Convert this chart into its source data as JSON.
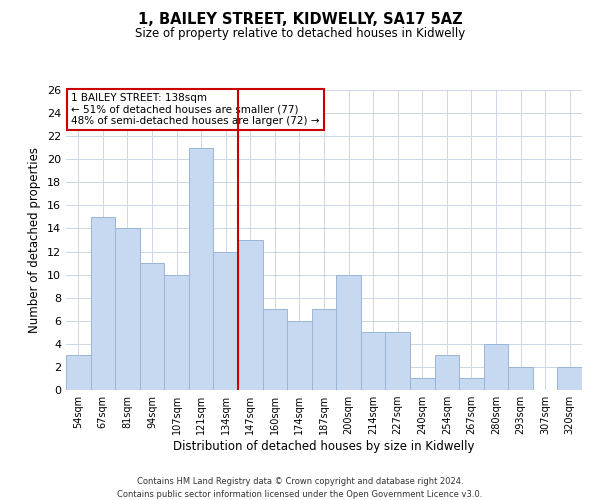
{
  "title": "1, BAILEY STREET, KIDWELLY, SA17 5AZ",
  "subtitle": "Size of property relative to detached houses in Kidwelly",
  "xlabel": "Distribution of detached houses by size in Kidwelly",
  "ylabel": "Number of detached properties",
  "bin_labels": [
    "54sqm",
    "67sqm",
    "81sqm",
    "94sqm",
    "107sqm",
    "121sqm",
    "134sqm",
    "147sqm",
    "160sqm",
    "174sqm",
    "187sqm",
    "200sqm",
    "214sqm",
    "227sqm",
    "240sqm",
    "254sqm",
    "267sqm",
    "280sqm",
    "293sqm",
    "307sqm",
    "320sqm"
  ],
  "bar_heights": [
    3,
    15,
    14,
    11,
    10,
    21,
    12,
    13,
    7,
    6,
    7,
    10,
    5,
    5,
    1,
    3,
    1,
    4,
    2,
    0,
    2
  ],
  "bar_color": "#c6d9f1",
  "bar_edgecolor": "#9ab5d9",
  "vline_x_index": 6.5,
  "vline_color": "#cc0000",
  "ylim": [
    0,
    26
  ],
  "yticks": [
    0,
    2,
    4,
    6,
    8,
    10,
    12,
    14,
    16,
    18,
    20,
    22,
    24,
    26
  ],
  "annotation_box_text": "1 BAILEY STREET: 138sqm\n← 51% of detached houses are smaller (77)\n48% of semi-detached houses are larger (72) →",
  "annotation_box_edgecolor": "#cc0000",
  "footer_line1": "Contains HM Land Registry data © Crown copyright and database right 2024.",
  "footer_line2": "Contains public sector information licensed under the Open Government Licence v3.0.",
  "bg_color": "#ffffff",
  "grid_color": "#ccd6e8"
}
